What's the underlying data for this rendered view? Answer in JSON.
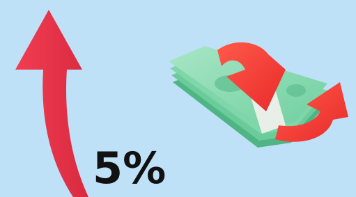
{
  "label": "5%"
}
